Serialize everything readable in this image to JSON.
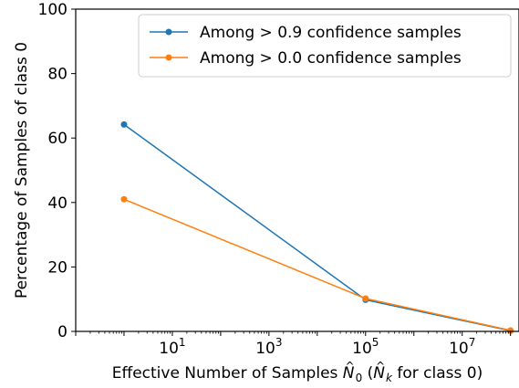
{
  "chart_data": {
    "type": "line",
    "xlabel": {
      "prefix": "Effective Number of Samples ",
      "n0_base": "N",
      "n0_hat": "^",
      "n0_sub": "0",
      "mid": " (",
      "nk_base": "N",
      "nk_hat": "^",
      "nk_sub": "k",
      "suffix": " for class 0)"
    },
    "ylabel": "Percentage of Samples of class 0",
    "x_scale": "log",
    "xlim": [
      0.1,
      150000000
    ],
    "ylim": [
      0,
      100
    ],
    "x_ticks": [
      {
        "value": 10,
        "base": "10",
        "exp": "1"
      },
      {
        "value": 1000,
        "base": "10",
        "exp": "3"
      },
      {
        "value": 100000,
        "base": "10",
        "exp": "5"
      },
      {
        "value": 10000000,
        "base": "10",
        "exp": "7"
      }
    ],
    "y_ticks": [
      0,
      20,
      40,
      60,
      80,
      100
    ],
    "grid": false,
    "legend": "top-right",
    "series": [
      {
        "name": "Among > 0.9 confidence samples",
        "color": "#1f77b4",
        "points": [
          {
            "x": 1,
            "y": 64.2
          },
          {
            "x": 100000,
            "y": 9.8
          },
          {
            "x": 100000000,
            "y": 0.2
          }
        ]
      },
      {
        "name": "Among > 0.0 confidence samples",
        "color": "#ff7f0e",
        "points": [
          {
            "x": 1,
            "y": 41.0
          },
          {
            "x": 100000,
            "y": 10.2
          },
          {
            "x": 100000000,
            "y": 0.3
          }
        ]
      }
    ]
  }
}
